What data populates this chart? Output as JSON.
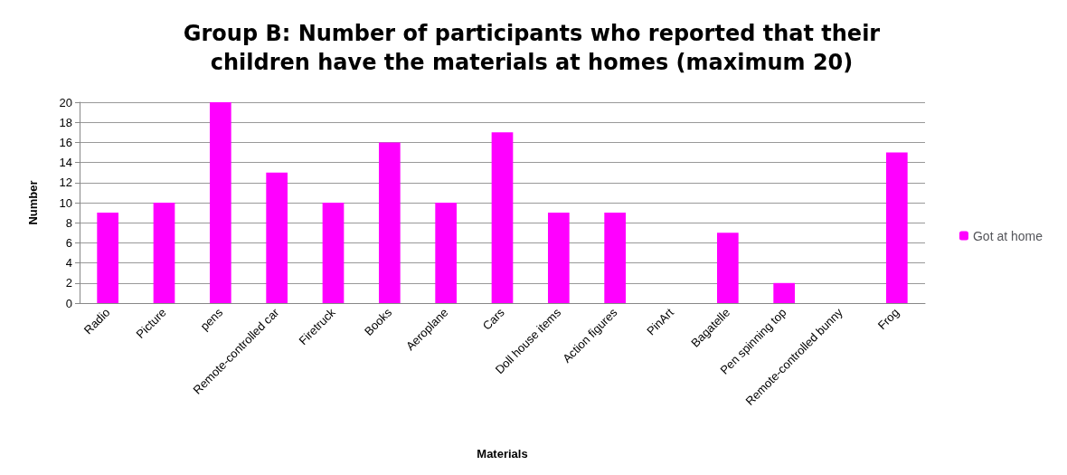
{
  "chart_data": {
    "type": "bar",
    "title": "Group B: Number of participants who reported that their\nchildren have the materials at homes (maximum 20)",
    "xlabel": "Materials",
    "ylabel": "Number",
    "categories": [
      "Radio",
      "Picture",
      "pens",
      "Remote-controlled car",
      "Firetruck",
      "Books",
      "Aeroplane",
      "Cars",
      "Doll house items",
      "Action figures",
      "PinArt",
      "Bagatelle",
      "Pen spinning top",
      "Remote-controlled bunny",
      "Frog"
    ],
    "series": [
      {
        "name": "Got at home",
        "color": "#ff00ff",
        "values": [
          9,
          10,
          20,
          13,
          10,
          16,
          10,
          17,
          9,
          9,
          0,
          7,
          2,
          0,
          15
        ]
      }
    ],
    "ylim": [
      0,
      20
    ],
    "yticks": [
      0,
      2,
      4,
      6,
      8,
      10,
      12,
      14,
      16,
      18,
      20
    ],
    "grid": "y",
    "legend": "right"
  }
}
